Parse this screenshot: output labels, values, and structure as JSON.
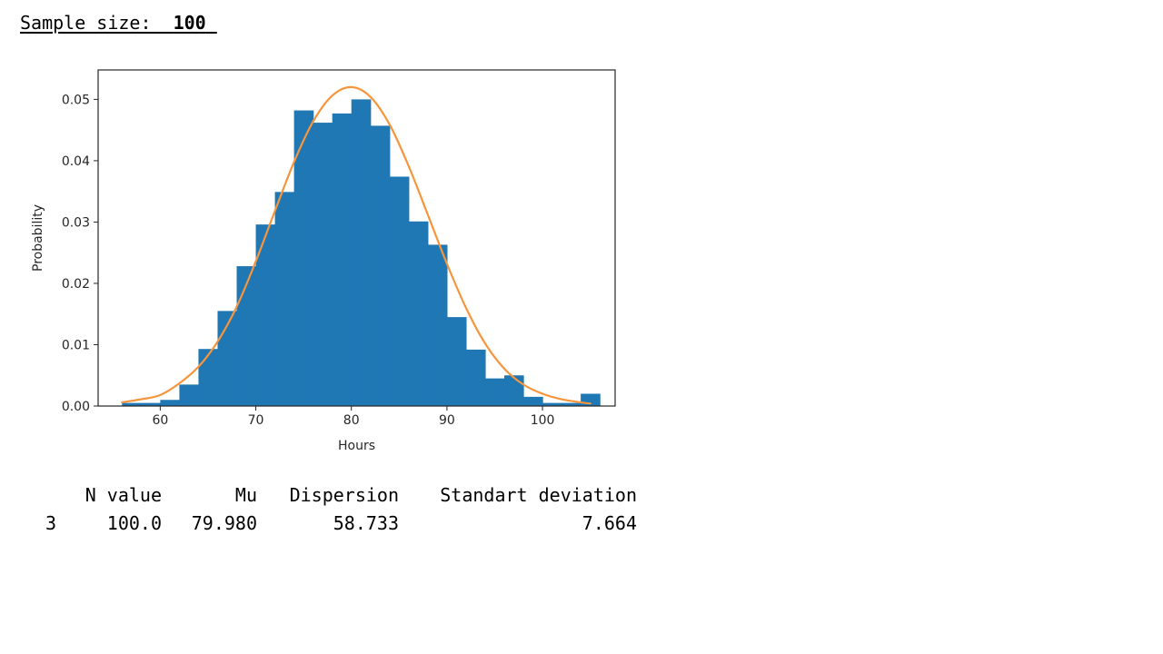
{
  "header": {
    "label": "Sample size:",
    "value": "100"
  },
  "chart_data": {
    "type": "bar",
    "xlabel": "Hours",
    "ylabel": "Probability",
    "xlim": [
      53.5,
      107.6
    ],
    "ylim": [
      0,
      0.0548
    ],
    "xticks": [
      60,
      70,
      80,
      90,
      100
    ],
    "yticks": [
      "0.00",
      "0.01",
      "0.02",
      "0.03",
      "0.04",
      "0.05"
    ],
    "hist": {
      "bin_edges": [
        56,
        58,
        60,
        62,
        64,
        66,
        68,
        70,
        72,
        74,
        76,
        78,
        80,
        82,
        84,
        86,
        88,
        90,
        92,
        94,
        96,
        98,
        100,
        102,
        104,
        106
      ],
      "values": [
        0.0005,
        0.0005,
        0.001,
        0.0035,
        0.0093,
        0.0155,
        0.0228,
        0.0296,
        0.0349,
        0.0482,
        0.0462,
        0.0477,
        0.05,
        0.0457,
        0.0374,
        0.0301,
        0.0263,
        0.0145,
        0.0092,
        0.0045,
        0.005,
        0.0015,
        0.0005,
        0.0005,
        0.002
      ],
      "color": "#1f77b4"
    },
    "curve": {
      "x": [
        56,
        58,
        60,
        62,
        64,
        66,
        68,
        70,
        72,
        74,
        76,
        78,
        80,
        82,
        84,
        86,
        88,
        90,
        92,
        94,
        96,
        98,
        100,
        102,
        104,
        105
      ],
      "y": [
        0.0006,
        0.0011,
        0.0018,
        0.0037,
        0.0064,
        0.0105,
        0.0162,
        0.0236,
        0.0318,
        0.0398,
        0.0464,
        0.0506,
        0.052,
        0.0504,
        0.0459,
        0.0391,
        0.0312,
        0.0232,
        0.016,
        0.0102,
        0.0061,
        0.0035,
        0.002,
        0.0011,
        0.0006,
        0.0004
      ],
      "color": "#f7953d"
    },
    "grid": false,
    "legend": "none"
  },
  "stats_table": {
    "columns": [
      "",
      "N value",
      "Mu",
      "Dispersion",
      "Standart deviation"
    ],
    "rows": [
      [
        "3",
        "100.0",
        "79.980",
        "58.733",
        "7.664"
      ]
    ]
  }
}
